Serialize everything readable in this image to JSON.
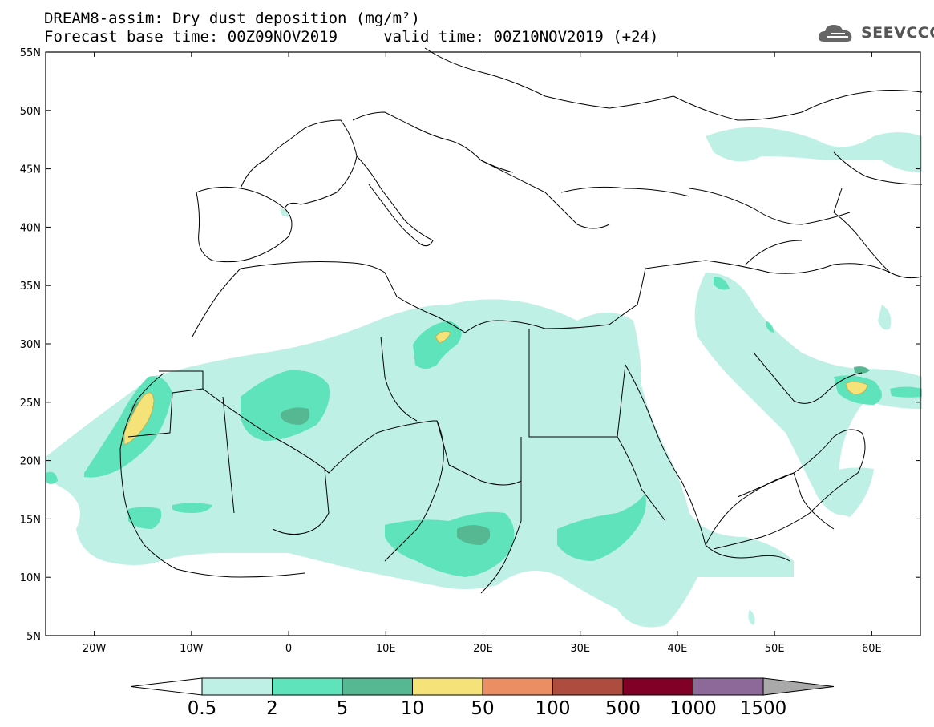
{
  "title": {
    "line1": "DREAM8-assim: Dry dust deposition (mg/m²)",
    "line2": "Forecast base time: 00Z09NOV2019     valid time: 00Z10NOV2019 (+24)"
  },
  "logo": {
    "text": "SEEVCCC",
    "icon": "cloud-icon"
  },
  "map": {
    "lon_range": [
      -25,
      65
    ],
    "lat_range": [
      5,
      55
    ],
    "lat_ticks": [
      {
        "value": 55,
        "label": "55N"
      },
      {
        "value": 50,
        "label": "50N"
      },
      {
        "value": 45,
        "label": "45N"
      },
      {
        "value": 40,
        "label": "40N"
      },
      {
        "value": 35,
        "label": "35N"
      },
      {
        "value": 30,
        "label": "30N"
      },
      {
        "value": 25,
        "label": "25N"
      },
      {
        "value": 20,
        "label": "20N"
      },
      {
        "value": 15,
        "label": "15N"
      },
      {
        "value": 10,
        "label": "10N"
      },
      {
        "value": 5,
        "label": "5N"
      }
    ],
    "lon_ticks": [
      {
        "value": -20,
        "label": "20W"
      },
      {
        "value": -10,
        "label": "10W"
      },
      {
        "value": 0,
        "label": "0"
      },
      {
        "value": 10,
        "label": "10E"
      },
      {
        "value": 20,
        "label": "20E"
      },
      {
        "value": 30,
        "label": "30E"
      },
      {
        "value": 40,
        "label": "40E"
      },
      {
        "value": 50,
        "label": "50E"
      },
      {
        "value": 60,
        "label": "60E"
      }
    ]
  },
  "colorbar": {
    "labels": [
      "0.5",
      "2",
      "5",
      "10",
      "50",
      "100",
      "500",
      "1000",
      "1500"
    ],
    "colors": [
      "#bff0e6",
      "#5ee3bb",
      "#55b893",
      "#f5e37a",
      "#eb8e63",
      "#ad4c3f",
      "#800026",
      "#8d6999"
    ],
    "under_color": "#ffffff",
    "over_color": "#a9a9a9"
  },
  "dust_colors": {
    "level1": "#bff0e6",
    "level2": "#5ee3bb",
    "level3": "#55b893",
    "level4": "#f5e37a",
    "level5": "#eb8e63"
  }
}
